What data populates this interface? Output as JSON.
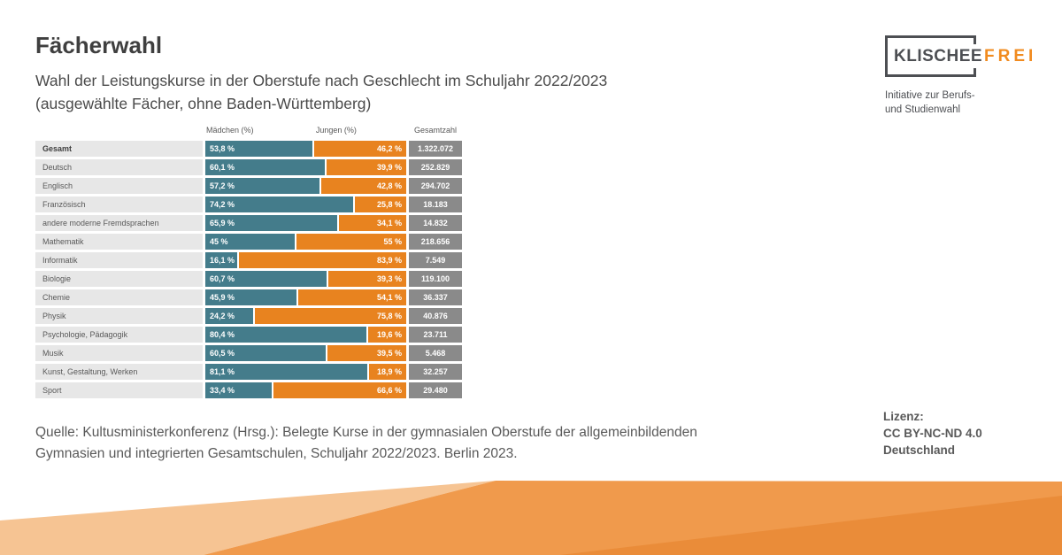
{
  "theme": {
    "text-dark": "#3f3f3f",
    "text-mid": "#4a4a4a",
    "text-gray": "#595959",
    "girls-bar": "#447c8b",
    "boys-bar": "#e8831f",
    "total-box": "#8a8a8a",
    "row-label-bg": "#e7e7e7",
    "logo-dark": "#4d4f53",
    "logo-orange": "#f18b1f",
    "wave-peach": "#f6c493",
    "wave-orange": "#f09a4c",
    "wave-orange-dark": "#ea8c39"
  },
  "header": {
    "title": "Fächerwahl",
    "subtitle_line1": "Wahl der Leistungskurse in der Oberstufe nach Geschlecht im Schuljahr 2022/2023",
    "subtitle_line2": "(ausgewählte Fächer, ohne Baden-Württemberg)"
  },
  "logo": {
    "text_main": "KLISCHEE",
    "text_accent": "FREI",
    "tagline_line1": "Initiative zur Berufs-",
    "tagline_line2": "und Studienwahl"
  },
  "chart_data": {
    "type": "bar",
    "subtype": "horizontal-stacked-100pct",
    "title": "Fächerwahl",
    "subtitle": "Wahl der Leistungskurse in der Oberstufe nach Geschlecht im Schuljahr 2022/2023 (ausgewählte Fächer, ohne Baden-Württemberg)",
    "columns": [
      "Mädchen (%)",
      "Jungen (%)",
      "Gesamtzahl"
    ],
    "categories": [
      "Gesamt",
      "Deutsch",
      "Englisch",
      "Französisch",
      "andere moderne Fremdsprachen",
      "Mathematik",
      "Informatik",
      "Biologie",
      "Chemie",
      "Physik",
      "Psychologie, Pädagogik",
      "Musik",
      "Kunst, Gestaltung, Werken",
      "Sport"
    ],
    "series": [
      {
        "name": "Mädchen (%)",
        "color": "#447c8b",
        "values": [
          53.8,
          60.1,
          57.2,
          74.2,
          65.9,
          45,
          16.1,
          60.7,
          45.9,
          24.2,
          80.4,
          60.5,
          81.1,
          33.4
        ]
      },
      {
        "name": "Jungen (%)",
        "color": "#e8831f",
        "values": [
          46.2,
          39.9,
          42.8,
          25.8,
          34.1,
          55,
          83.9,
          39.3,
          54.1,
          75.8,
          19.6,
          39.5,
          18.9,
          66.6
        ]
      }
    ],
    "totals": {
      "name": "Gesamtzahl",
      "values": [
        1322072,
        252829,
        294702,
        18183,
        14832,
        218656,
        7549,
        119100,
        36337,
        40876,
        23711,
        5468,
        32257,
        29480
      ]
    },
    "rows": [
      {
        "label": "Gesamt",
        "bold": true,
        "maedchen": 53.8,
        "jungen": 46.2,
        "maedchen_label": "53,8 %",
        "jungen_label": "46,2 %",
        "gesamt_label": "1.322.072"
      },
      {
        "label": "Deutsch",
        "bold": false,
        "maedchen": 60.1,
        "jungen": 39.9,
        "maedchen_label": "60,1 %",
        "jungen_label": "39,9 %",
        "gesamt_label": "252.829"
      },
      {
        "label": "Englisch",
        "bold": false,
        "maedchen": 57.2,
        "jungen": 42.8,
        "maedchen_label": "57,2 %",
        "jungen_label": "42,8 %",
        "gesamt_label": "294.702"
      },
      {
        "label": "Französisch",
        "bold": false,
        "maedchen": 74.2,
        "jungen": 25.8,
        "maedchen_label": "74,2 %",
        "jungen_label": "25,8 %",
        "gesamt_label": "18.183"
      },
      {
        "label": "andere moderne Fremdsprachen",
        "bold": false,
        "maedchen": 65.9,
        "jungen": 34.1,
        "maedchen_label": "65,9 %",
        "jungen_label": "34,1 %",
        "gesamt_label": "14.832"
      },
      {
        "label": "Mathematik",
        "bold": false,
        "maedchen": 45,
        "jungen": 55,
        "maedchen_label": "45 %",
        "jungen_label": "55 %",
        "gesamt_label": "218.656"
      },
      {
        "label": "Informatik",
        "bold": false,
        "maedchen": 16.1,
        "jungen": 83.9,
        "maedchen_label": "16,1 %",
        "jungen_label": "83,9 %",
        "gesamt_label": "7.549"
      },
      {
        "label": "Biologie",
        "bold": false,
        "maedchen": 60.7,
        "jungen": 39.3,
        "maedchen_label": "60,7 %",
        "jungen_label": "39,3 %",
        "gesamt_label": "119.100"
      },
      {
        "label": "Chemie",
        "bold": false,
        "maedchen": 45.9,
        "jungen": 54.1,
        "maedchen_label": "45,9 %",
        "jungen_label": "54,1 %",
        "gesamt_label": "36.337"
      },
      {
        "label": "Physik",
        "bold": false,
        "maedchen": 24.2,
        "jungen": 75.8,
        "maedchen_label": "24,2 %",
        "jungen_label": "75,8 %",
        "gesamt_label": "40.876"
      },
      {
        "label": "Psychologie, Pädagogik",
        "bold": false,
        "maedchen": 80.4,
        "jungen": 19.6,
        "maedchen_label": "80,4 %",
        "jungen_label": "19,6 %",
        "gesamt_label": "23.711"
      },
      {
        "label": "Musik",
        "bold": false,
        "maedchen": 60.5,
        "jungen": 39.5,
        "maedchen_label": "60,5 %",
        "jungen_label": "39,5 %",
        "gesamt_label": "5.468"
      },
      {
        "label": "Kunst, Gestaltung, Werken",
        "bold": false,
        "maedchen": 81.1,
        "jungen": 18.9,
        "maedchen_label": "81,1 %",
        "jungen_label": "18,9 %",
        "gesamt_label": "32.257"
      },
      {
        "label": "Sport",
        "bold": false,
        "maedchen": 33.4,
        "jungen": 66.6,
        "maedchen_label": "33,4 %",
        "jungen_label": "66,6 %",
        "gesamt_label": "29.480"
      }
    ],
    "legend_position": "column-headers",
    "grid": false,
    "xlim": [
      0,
      100
    ]
  },
  "source": {
    "line1": "Quelle: Kultusministerkonferenz (Hrsg.): Belegte Kurse in der gymnasialen Oberstufe der allgemeinbildenden",
    "line2": "Gymnasien und integrierten Gesamtschulen, Schuljahr 2022/2023. Berlin 2023."
  },
  "license": {
    "label": "Lizenz:",
    "line2": "CC BY-NC-ND 4.0",
    "line3": "Deutschland"
  }
}
